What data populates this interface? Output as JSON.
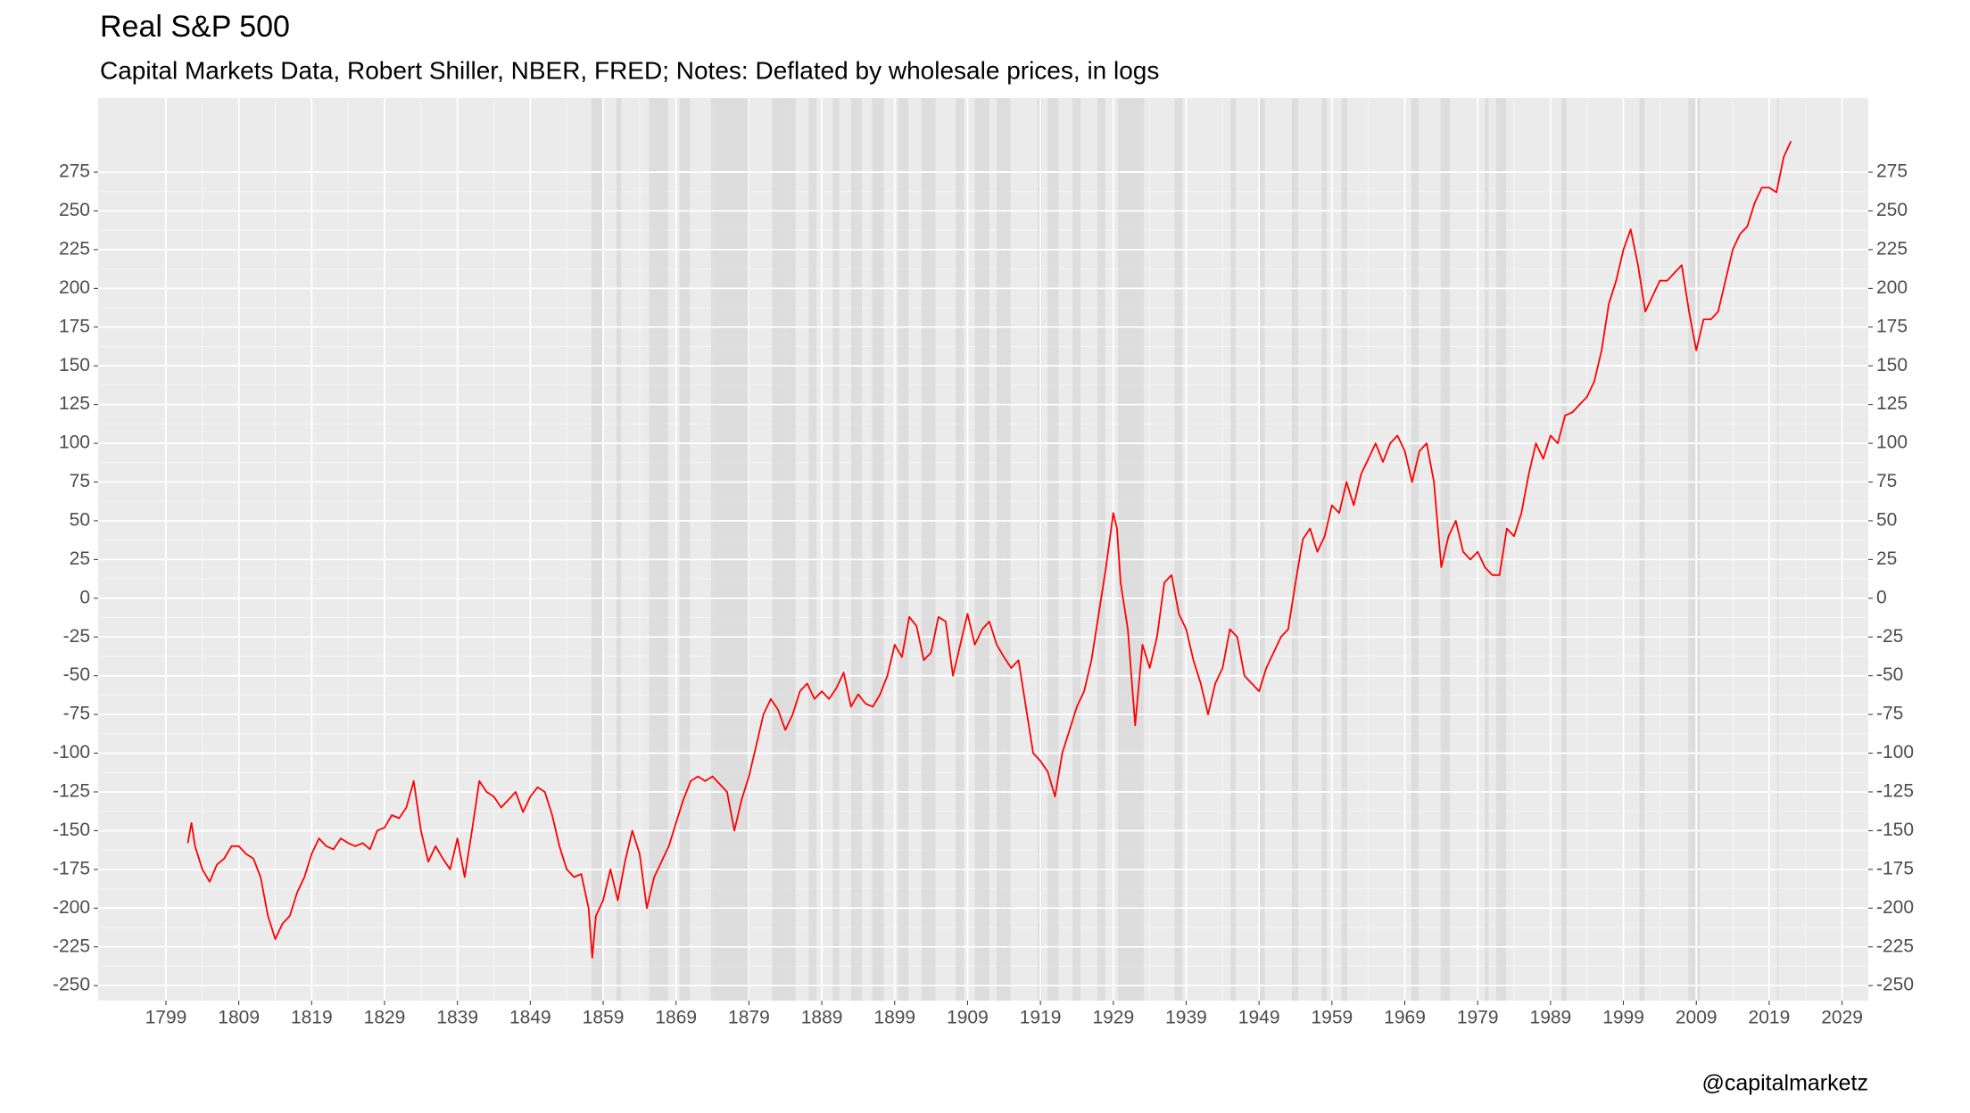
{
  "chart_data": {
    "type": "line",
    "title": "Real S&P 500",
    "subtitle": "Capital Markets Data, Robert Shiller, NBER, FRED; Notes: Deflated by wholesale prices, in logs",
    "caption": "@capitalmarketz",
    "color": "#ff0000",
    "recession_color": "#d9d9d9",
    "grid": true,
    "xlim": [
      1789.7,
      2032.6
    ],
    "ylim": [
      -259.7,
      322.8
    ],
    "xticks": [
      1799,
      1809,
      1819,
      1829,
      1839,
      1849,
      1859,
      1869,
      1879,
      1889,
      1899,
      1909,
      1919,
      1929,
      1939,
      1949,
      1959,
      1969,
      1979,
      1989,
      1999,
      2009,
      2019,
      2029
    ],
    "yticks": [
      -250,
      -225,
      -200,
      -175,
      -150,
      -125,
      -100,
      -75,
      -50,
      -25,
      0,
      25,
      50,
      75,
      100,
      125,
      150,
      175,
      200,
      225,
      250,
      275
    ],
    "recessions": [
      [
        1857.4,
        1858.9
      ],
      [
        1860.8,
        1861.5
      ],
      [
        1865.3,
        1867.9
      ],
      [
        1869.5,
        1870.9
      ],
      [
        1873.8,
        1879.2
      ],
      [
        1882.2,
        1885.4
      ],
      [
        1887.2,
        1888.3
      ],
      [
        1890.5,
        1891.4
      ],
      [
        1893.0,
        1894.5
      ],
      [
        1895.9,
        1897.5
      ],
      [
        1899.5,
        1900.9
      ],
      [
        1902.7,
        1904.6
      ],
      [
        1907.4,
        1908.5
      ],
      [
        1910.0,
        1912.0
      ],
      [
        1913.0,
        1914.9
      ],
      [
        1918.6,
        1919.2
      ],
      [
        1920.0,
        1921.5
      ],
      [
        1923.4,
        1924.5
      ],
      [
        1926.8,
        1927.9
      ],
      [
        1929.6,
        1933.2
      ],
      [
        1937.4,
        1938.5
      ],
      [
        1945.1,
        1945.8
      ],
      [
        1948.9,
        1949.8
      ],
      [
        1953.5,
        1954.4
      ],
      [
        1957.6,
        1958.3
      ],
      [
        1960.3,
        1961.1
      ],
      [
        1969.9,
        1970.9
      ],
      [
        1973.9,
        1975.2
      ],
      [
        1980.0,
        1980.5
      ],
      [
        1981.5,
        1982.9
      ],
      [
        1990.5,
        1991.2
      ],
      [
        2001.2,
        2001.9
      ],
      [
        2007.9,
        2009.5
      ],
      [
        2020.1,
        2020.3
      ]
    ],
    "x": [
      1802,
      1802.5,
      1803,
      1804,
      1805,
      1806,
      1807,
      1808,
      1809,
      1810,
      1811,
      1812,
      1813,
      1814,
      1815,
      1816,
      1817,
      1818,
      1819,
      1820,
      1821,
      1822,
      1823,
      1824,
      1825,
      1826,
      1827,
      1828,
      1829,
      1830,
      1831,
      1832,
      1833,
      1834,
      1835,
      1836,
      1837,
      1838,
      1839,
      1840,
      1841,
      1842,
      1843,
      1844,
      1845,
      1846,
      1847,
      1848,
      1849,
      1850,
      1851,
      1852,
      1853,
      1854,
      1855,
      1856,
      1857,
      1857.5,
      1858,
      1859,
      1860,
      1861,
      1862,
      1863,
      1864,
      1865,
      1866,
      1867,
      1868,
      1869,
      1870,
      1871,
      1872,
      1873,
      1874,
      1875,
      1876,
      1877,
      1878,
      1879,
      1880,
      1881,
      1882,
      1883,
      1884,
      1885,
      1886,
      1887,
      1888,
      1889,
      1890,
      1891,
      1892,
      1893,
      1894,
      1895,
      1896,
      1897,
      1898,
      1899,
      1900,
      1901,
      1902,
      1903,
      1904,
      1905,
      1906,
      1907,
      1908,
      1909,
      1910,
      1911,
      1912,
      1913,
      1914,
      1915,
      1916,
      1917,
      1918,
      1919,
      1920,
      1921,
      1922,
      1923,
      1924,
      1925,
      1926,
      1927,
      1928,
      1929,
      1929.5,
      1930,
      1931,
      1932,
      1933,
      1934,
      1935,
      1936,
      1937,
      1938,
      1939,
      1940,
      1941,
      1942,
      1943,
      1944,
      1945,
      1946,
      1947,
      1948,
      1949,
      1950,
      1951,
      1952,
      1953,
      1954,
      1955,
      1956,
      1957,
      1958,
      1959,
      1960,
      1961,
      1962,
      1963,
      1964,
      1965,
      1966,
      1967,
      1968,
      1969,
      1970,
      1971,
      1972,
      1973,
      1974,
      1975,
      1976,
      1977,
      1978,
      1979,
      1980,
      1981,
      1982,
      1983,
      1984,
      1985,
      1986,
      1987,
      1988,
      1989,
      1990,
      1991,
      1992,
      1993,
      1994,
      1995,
      1996,
      1997,
      1998,
      1999,
      2000,
      2001,
      2002,
      2003,
      2004,
      2005,
      2006,
      2007,
      2008,
      2009,
      2010,
      2011,
      2012,
      2013,
      2014,
      2015,
      2016,
      2017,
      2018,
      2019,
      2020,
      2021,
      2022
    ],
    "values": [
      -158,
      -145,
      -160,
      -175,
      -183,
      -172,
      -168,
      -160,
      -160,
      -165,
      -168,
      -180,
      -205,
      -220,
      -210,
      -205,
      -190,
      -180,
      -165,
      -155,
      -160,
      -162,
      -155,
      -158,
      -160,
      -158,
      -162,
      -150,
      -148,
      -140,
      -142,
      -135,
      -118,
      -150,
      -170,
      -160,
      -168,
      -175,
      -155,
      -180,
      -150,
      -118,
      -125,
      -128,
      -135,
      -130,
      -125,
      -138,
      -128,
      -122,
      -125,
      -140,
      -160,
      -175,
      -180,
      -178,
      -200,
      -232,
      -205,
      -195,
      -175,
      -195,
      -170,
      -150,
      -165,
      -200,
      -180,
      -170,
      -160,
      -145,
      -130,
      -118,
      -115,
      -118,
      -115,
      -120,
      -125,
      -150,
      -130,
      -115,
      -95,
      -75,
      -65,
      -72,
      -85,
      -75,
      -60,
      -55,
      -65,
      -60,
      -65,
      -58,
      -48,
      -70,
      -62,
      -68,
      -70,
      -62,
      -50,
      -30,
      -38,
      -12,
      -18,
      -40,
      -35,
      -12,
      -15,
      -50,
      -30,
      -10,
      -30,
      -20,
      -15,
      -30,
      -38,
      -45,
      -40,
      -70,
      -100,
      -105,
      -112,
      -128,
      -100,
      -85,
      -70,
      -60,
      -40,
      -10,
      20,
      55,
      45,
      10,
      -20,
      -82,
      -30,
      -45,
      -25,
      10,
      15,
      -10,
      -20,
      -40,
      -55,
      -75,
      -55,
      -45,
      -20,
      -25,
      -50,
      -55,
      -60,
      -45,
      -35,
      -25,
      -20,
      10,
      38,
      45,
      30,
      40,
      60,
      55,
      75,
      60,
      80,
      90,
      100,
      88,
      100,
      105,
      95,
      75,
      95,
      100,
      75,
      20,
      40,
      50,
      30,
      25,
      30,
      20,
      15,
      15,
      45,
      40,
      55,
      80,
      100,
      90,
      105,
      100,
      118,
      120,
      125,
      130,
      140,
      160,
      190,
      205,
      225,
      238,
      215,
      185,
      195,
      205,
      205,
      210,
      215,
      185,
      160,
      180,
      180,
      185,
      205,
      225,
      235,
      240,
      255,
      265,
      265,
      262,
      285,
      295
    ]
  }
}
